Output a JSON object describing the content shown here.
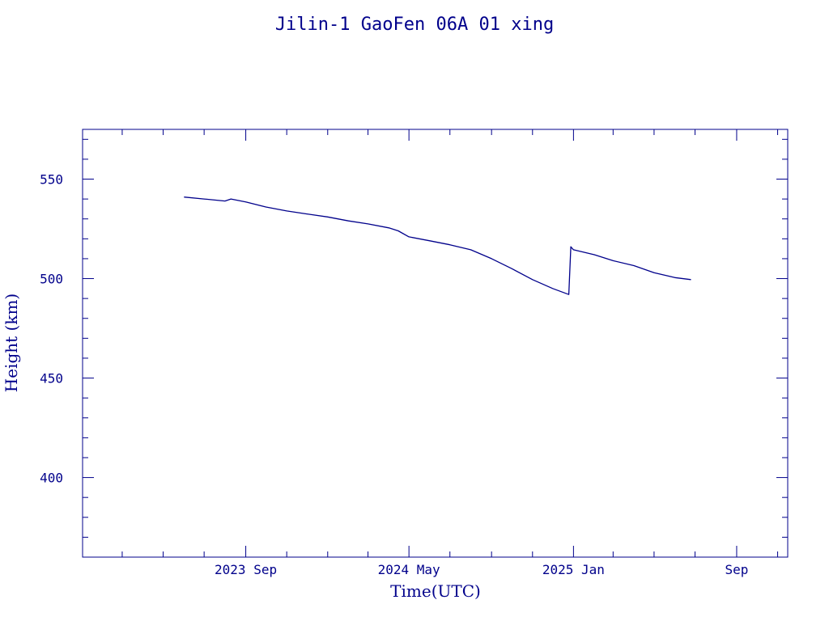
{
  "chart_data": {
    "type": "line",
    "title": "Jilin-1 GaoFen 06A 01 xing",
    "xlabel": "Time(UTC)",
    "ylabel": "Height (km)",
    "xlim": [
      "2023-01-01",
      "2025-11-16"
    ],
    "ylim": [
      360,
      575
    ],
    "x_tick_labels": [
      {
        "date": "2023-09-01",
        "label": "2023 Sep"
      },
      {
        "date": "2024-05-01",
        "label": "2024 May"
      },
      {
        "date": "2025-01-01",
        "label": "2025 Jan"
      },
      {
        "date": "2025-09-01",
        "label": "Sep"
      }
    ],
    "y_tick_labels": [
      {
        "value": 400,
        "label": "400"
      },
      {
        "value": 450,
        "label": "450"
      },
      {
        "value": 500,
        "label": "500"
      },
      {
        "value": 550,
        "label": "550"
      }
    ],
    "grid": false,
    "legend": "none",
    "series": [
      {
        "color": "#00008b",
        "x": [
          "2023-06-01",
          "2023-07-01",
          "2023-08-01",
          "2023-08-10",
          "2023-09-01",
          "2023-10-01",
          "2023-11-01",
          "2023-12-01",
          "2024-01-01",
          "2024-02-01",
          "2024-03-01",
          "2024-04-01",
          "2024-04-15",
          "2024-05-01",
          "2024-06-01",
          "2024-07-01",
          "2024-08-01",
          "2024-09-01",
          "2024-10-01",
          "2024-11-01",
          "2024-12-01",
          "2024-12-25",
          "2024-12-28",
          "2025-01-01",
          "2025-02-01",
          "2025-03-01",
          "2025-04-01",
          "2025-05-01",
          "2025-06-01",
          "2025-06-25"
        ],
        "y": [
          541,
          540,
          539,
          540,
          538.5,
          536,
          534,
          532.5,
          531,
          529,
          527.5,
          525.5,
          524,
          521,
          519,
          517,
          514.5,
          510,
          505,
          499.5,
          495,
          492,
          516,
          514.5,
          512,
          509,
          506.5,
          503,
          500.5,
          499.5
        ]
      }
    ]
  }
}
